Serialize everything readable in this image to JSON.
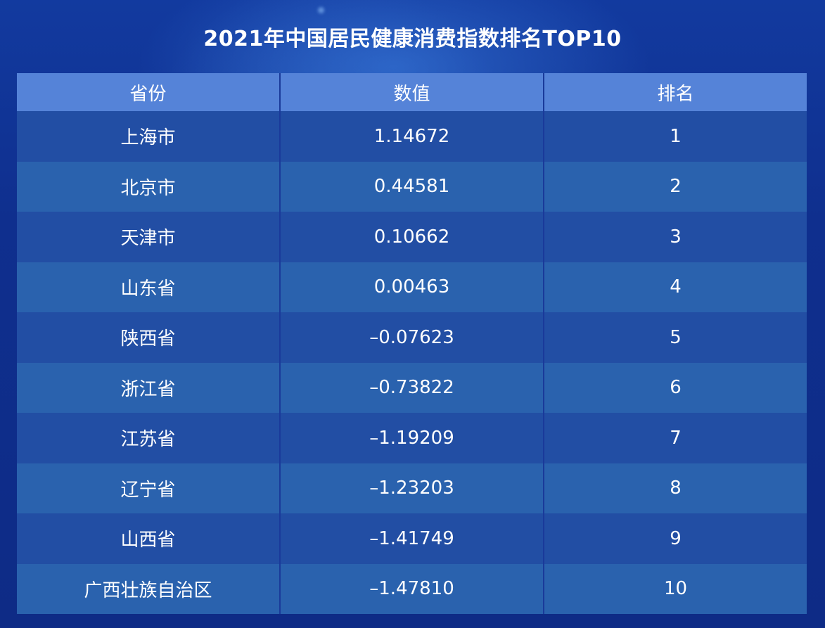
{
  "chart_data": {
    "type": "table",
    "title": "2021年中国居民健康消费指数排名TOP10",
    "columns": [
      "省份",
      "数值",
      "排名"
    ],
    "rows": [
      [
        "上海市",
        "1.14672",
        "1"
      ],
      [
        "北京市",
        "0.44581",
        "2"
      ],
      [
        "天津市",
        "0.10662",
        "3"
      ],
      [
        "山东省",
        "0.00463",
        "4"
      ],
      [
        "陕西省",
        "–0.07623",
        "5"
      ],
      [
        "浙江省",
        "–0.73822",
        "6"
      ],
      [
        "江苏省",
        "–1.19209",
        "7"
      ],
      [
        "辽宁省",
        "–1.23203",
        "8"
      ],
      [
        "山西省",
        "–1.41749",
        "9"
      ],
      [
        "广西壮族自治区",
        "–1.47810",
        "10"
      ]
    ]
  },
  "colors": {
    "background": "#0f2f8e",
    "header": "#5583d8",
    "row_dark": "#224ea4",
    "row_light": "#2a62ae",
    "text": "#ffffff"
  }
}
